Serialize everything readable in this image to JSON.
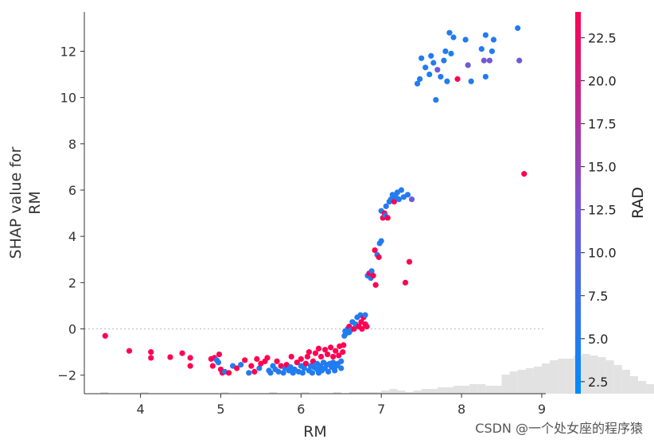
{
  "chart_data": {
    "type": "scatter",
    "xlabel": "RM",
    "ylabel": "SHAP value for\nRM",
    "xlim": [
      3.3,
      9.05
    ],
    "ylim": [
      -2.8,
      13.7
    ],
    "x_ticks": [
      4,
      5,
      6,
      7,
      8,
      9
    ],
    "y_ticks": [
      -2,
      0,
      2,
      4,
      6,
      8,
      10,
      12
    ],
    "zero_line": true,
    "colorbar": {
      "label": "RAD",
      "range": [
        1.8,
        24
      ],
      "ticks": [
        2.5,
        5.0,
        7.5,
        10.0,
        12.5,
        15.0,
        17.5,
        20.0,
        22.5
      ],
      "tick_labels": [
        "2.5",
        "5.0",
        "7.5",
        "10.0",
        "12.5",
        "15.0",
        "17.5",
        "20.0",
        "22.5"
      ],
      "color_low": "#008bfb",
      "color_mid": "#7a55d4",
      "color_high": "#ff0052"
    },
    "histogram": {
      "bin_start": 3.5,
      "bin_width": 0.1,
      "counts": [
        1,
        0,
        0,
        0,
        0,
        1,
        0,
        0,
        0,
        0,
        0,
        0,
        0,
        0,
        0,
        1,
        0,
        0,
        0,
        0,
        0,
        1,
        0,
        0,
        0,
        1,
        0,
        0,
        0,
        1,
        0,
        1,
        1,
        1,
        1,
        2,
        3,
        2,
        1,
        2,
        3,
        3,
        4,
        4,
        5,
        5,
        6,
        6,
        5,
        5,
        12,
        14,
        15,
        16,
        17,
        19,
        21,
        22,
        22,
        24,
        25,
        24,
        23,
        21,
        18,
        15,
        11,
        8,
        6,
        5,
        4,
        3,
        3,
        3,
        2,
        2,
        2,
        2,
        1,
        1,
        2,
        2,
        1,
        1,
        1,
        1,
        1,
        0,
        1,
        1,
        1,
        0,
        1,
        1,
        0,
        1,
        0,
        1,
        1,
        0,
        0,
        1,
        1,
        0,
        0,
        0,
        1
      ]
    },
    "points": [
      [
        3.56,
        -0.3,
        24
      ],
      [
        3.86,
        -0.95,
        24
      ],
      [
        4.13,
        -1.0,
        24
      ],
      [
        4.13,
        -1.25,
        24
      ],
      [
        4.37,
        -1.22,
        24
      ],
      [
        4.52,
        -1.05,
        24
      ],
      [
        4.62,
        -1.25,
        24
      ],
      [
        4.62,
        -1.6,
        24
      ],
      [
        4.88,
        -1.3,
        24
      ],
      [
        4.9,
        -1.6,
        24
      ],
      [
        4.92,
        -1.25,
        24
      ],
      [
        4.95,
        -1.35,
        5
      ],
      [
        4.97,
        -1.45,
        5
      ],
      [
        4.98,
        -1.1,
        24
      ],
      [
        5.0,
        -1.75,
        24
      ],
      [
        5.02,
        -1.9,
        24
      ],
      [
        5.05,
        -1.85,
        5
      ],
      [
        5.1,
        -1.9,
        24
      ],
      [
        5.15,
        -1.6,
        5
      ],
      [
        5.2,
        -1.7,
        24
      ],
      [
        5.25,
        -1.55,
        5
      ],
      [
        5.3,
        -1.35,
        24
      ],
      [
        5.35,
        -1.9,
        5
      ],
      [
        5.38,
        -1.6,
        24
      ],
      [
        5.42,
        -1.85,
        24
      ],
      [
        5.45,
        -1.3,
        24
      ],
      [
        5.48,
        -1.7,
        5
      ],
      [
        5.5,
        -1.5,
        24
      ],
      [
        5.55,
        -1.4,
        24
      ],
      [
        5.58,
        -1.25,
        24
      ],
      [
        5.6,
        -1.8,
        5
      ],
      [
        5.62,
        -1.9,
        5
      ],
      [
        5.65,
        -1.6,
        4
      ],
      [
        5.68,
        -1.75,
        5
      ],
      [
        5.7,
        -1.4,
        24
      ],
      [
        5.72,
        -1.85,
        5
      ],
      [
        5.75,
        -1.6,
        24
      ],
      [
        5.78,
        -1.9,
        5
      ],
      [
        5.8,
        -1.7,
        4
      ],
      [
        5.82,
        -1.55,
        24
      ],
      [
        5.85,
        -1.8,
        5
      ],
      [
        5.87,
        -1.65,
        5
      ],
      [
        5.88,
        -1.2,
        24
      ],
      [
        5.9,
        -1.9,
        4
      ],
      [
        5.92,
        -1.75,
        5
      ],
      [
        5.95,
        -1.45,
        24
      ],
      [
        5.97,
        -1.85,
        5
      ],
      [
        6.0,
        -1.6,
        4
      ],
      [
        6.0,
        -1.3,
        24
      ],
      [
        6.02,
        -1.9,
        5
      ],
      [
        6.04,
        -1.7,
        5
      ],
      [
        6.06,
        -1.5,
        24
      ],
      [
        6.08,
        -1.2,
        24
      ],
      [
        6.1,
        -1.8,
        4
      ],
      [
        6.1,
        -1.0,
        24
      ],
      [
        6.12,
        -1.6,
        5
      ],
      [
        6.14,
        -1.9,
        5
      ],
      [
        6.15,
        -1.4,
        24
      ],
      [
        6.16,
        -1.65,
        5
      ],
      [
        6.18,
        -1.05,
        24
      ],
      [
        6.2,
        -1.75,
        4
      ],
      [
        6.2,
        -1.5,
        5
      ],
      [
        6.22,
        -1.9,
        5
      ],
      [
        6.22,
        -0.85,
        24
      ],
      [
        6.24,
        -1.6,
        5
      ],
      [
        6.25,
        -1.2,
        24
      ],
      [
        6.26,
        -1.8,
        5
      ],
      [
        6.28,
        -1.45,
        5
      ],
      [
        6.3,
        -0.9,
        24
      ],
      [
        6.3,
        -1.7,
        4
      ],
      [
        6.32,
        -1.55,
        5
      ],
      [
        6.33,
        -1.1,
        24
      ],
      [
        6.34,
        -1.85,
        5
      ],
      [
        6.36,
        -1.5,
        5
      ],
      [
        6.37,
        -0.8,
        24
      ],
      [
        6.38,
        -1.65,
        5
      ],
      [
        6.4,
        -1.45,
        5
      ],
      [
        6.4,
        -1.2,
        24
      ],
      [
        6.42,
        -1.8,
        5
      ],
      [
        6.43,
        -0.95,
        24
      ],
      [
        6.44,
        -1.6,
        4
      ],
      [
        6.46,
        -1.5,
        5
      ],
      [
        6.47,
        -1.15,
        24
      ],
      [
        6.48,
        -0.75,
        24
      ],
      [
        6.5,
        -1.4,
        5
      ],
      [
        6.5,
        -1.7,
        5
      ],
      [
        6.52,
        -1.0,
        24
      ],
      [
        6.53,
        -0.7,
        24
      ],
      [
        6.54,
        -0.3,
        5
      ],
      [
        6.55,
        -0.1,
        4
      ],
      [
        6.56,
        -0.2,
        5
      ],
      [
        6.58,
        0.0,
        5
      ],
      [
        6.6,
        -0.15,
        4
      ],
      [
        6.6,
        0.1,
        24
      ],
      [
        6.62,
        -0.05,
        5
      ],
      [
        6.64,
        0.3,
        5
      ],
      [
        6.66,
        0.0,
        24
      ],
      [
        6.68,
        0.2,
        5
      ],
      [
        6.7,
        0.5,
        5
      ],
      [
        6.72,
        0.1,
        24
      ],
      [
        6.74,
        0.6,
        5
      ],
      [
        6.75,
        0.3,
        24
      ],
      [
        6.76,
        0.0,
        24
      ],
      [
        6.78,
        0.5,
        24
      ],
      [
        6.8,
        0.2,
        24
      ],
      [
        6.8,
        0.6,
        5
      ],
      [
        6.82,
        0.1,
        24
      ],
      [
        6.83,
        2.3,
        5
      ],
      [
        6.85,
        2.4,
        24
      ],
      [
        6.87,
        2.2,
        5
      ],
      [
        6.88,
        2.5,
        5
      ],
      [
        6.9,
        2.3,
        24
      ],
      [
        6.92,
        3.4,
        24
      ],
      [
        6.93,
        1.9,
        24
      ],
      [
        6.95,
        3.2,
        5
      ],
      [
        6.97,
        3.1,
        24
      ],
      [
        6.98,
        3.7,
        5
      ],
      [
        7.0,
        3.8,
        5
      ],
      [
        7.0,
        5.1,
        5
      ],
      [
        7.02,
        4.8,
        24
      ],
      [
        7.04,
        5.0,
        24
      ],
      [
        7.05,
        4.9,
        5
      ],
      [
        7.06,
        5.3,
        5
      ],
      [
        7.08,
        4.8,
        24
      ],
      [
        7.1,
        5.5,
        5
      ],
      [
        7.12,
        5.6,
        5
      ],
      [
        7.14,
        5.8,
        5
      ],
      [
        7.16,
        5.5,
        24
      ],
      [
        7.18,
        5.7,
        5
      ],
      [
        7.2,
        5.9,
        5
      ],
      [
        7.22,
        5.6,
        5
      ],
      [
        7.25,
        6.0,
        5
      ],
      [
        7.28,
        5.7,
        5
      ],
      [
        7.3,
        2.0,
        24
      ],
      [
        7.33,
        5.8,
        5
      ],
      [
        7.35,
        2.9,
        24
      ],
      [
        7.38,
        5.6,
        12
      ],
      [
        7.45,
        10.6,
        5
      ],
      [
        7.48,
        10.8,
        5
      ],
      [
        7.5,
        11.7,
        5
      ],
      [
        7.55,
        11.3,
        5
      ],
      [
        7.6,
        11.0,
        4
      ],
      [
        7.62,
        11.8,
        5
      ],
      [
        7.65,
        11.5,
        5
      ],
      [
        7.68,
        9.9,
        5
      ],
      [
        7.7,
        11.2,
        12
      ],
      [
        7.74,
        10.9,
        5
      ],
      [
        7.78,
        11.6,
        5
      ],
      [
        7.8,
        12.0,
        5
      ],
      [
        7.82,
        10.7,
        5
      ],
      [
        7.85,
        12.8,
        5
      ],
      [
        7.87,
        11.9,
        4
      ],
      [
        7.9,
        12.6,
        5
      ],
      [
        7.95,
        10.8,
        24
      ],
      [
        8.05,
        12.5,
        5
      ],
      [
        8.08,
        11.4,
        12
      ],
      [
        8.12,
        10.7,
        5
      ],
      [
        8.25,
        12.1,
        5
      ],
      [
        8.28,
        11.6,
        12
      ],
      [
        8.3,
        12.7,
        5
      ],
      [
        8.3,
        10.9,
        5
      ],
      [
        8.35,
        11.6,
        12
      ],
      [
        8.38,
        12.0,
        5
      ],
      [
        8.4,
        12.5,
        5
      ],
      [
        8.7,
        13.0,
        5
      ],
      [
        8.72,
        11.6,
        12
      ],
      [
        8.78,
        6.7,
        24
      ]
    ]
  },
  "watermark": "CSDN @一个处女座的程序猿"
}
